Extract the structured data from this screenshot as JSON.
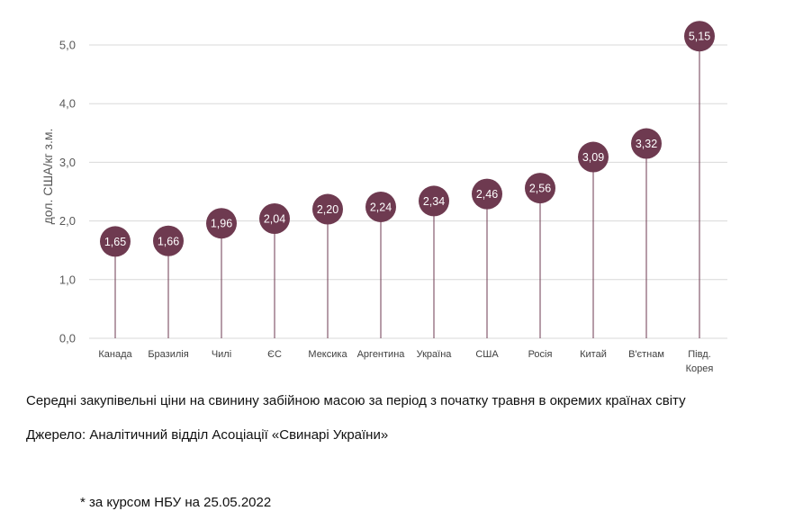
{
  "chart_data": {
    "type": "lollipop",
    "categories": [
      "Канада",
      "Бразилія",
      "Чилі",
      "ЄС",
      "Мексика",
      "Аргентина",
      "Україна",
      "США",
      "Росія",
      "Китай",
      "В'єтнам",
      "Півд.\nКорея"
    ],
    "values": [
      1.65,
      1.66,
      1.96,
      2.04,
      2.2,
      2.24,
      2.34,
      2.46,
      2.56,
      3.09,
      3.32,
      5.15
    ],
    "value_labels": [
      "1,65",
      "1,66",
      "1,96",
      "2,04",
      "2,20",
      "2,24",
      "2,34",
      "2,46",
      "2,56",
      "3,09",
      "3,32",
      "5,15"
    ],
    "ylabel": "дол. США/кг з.м.",
    "ylim": [
      0,
      5
    ],
    "yticks": [
      0,
      1,
      2,
      3,
      4,
      5
    ],
    "ytick_labels": [
      "0,0",
      "1,0",
      "2,0",
      "3,0",
      "4,0",
      "5,0"
    ],
    "grid": true
  },
  "colors": {
    "marker": "#6e3a50",
    "stem": "#6e3a50",
    "grid": "#d9d9d9",
    "value_text": "#ffffff"
  },
  "captions": {
    "title": "Середні закупівельні ціни на свинину забійною масою за період з початку травня в окремих країнах світу",
    "source": "Джерело: Аналітичний відділ Асоціації «Свинарі України»",
    "footnote": "* за курсом НБУ на 25.05.2022"
  }
}
